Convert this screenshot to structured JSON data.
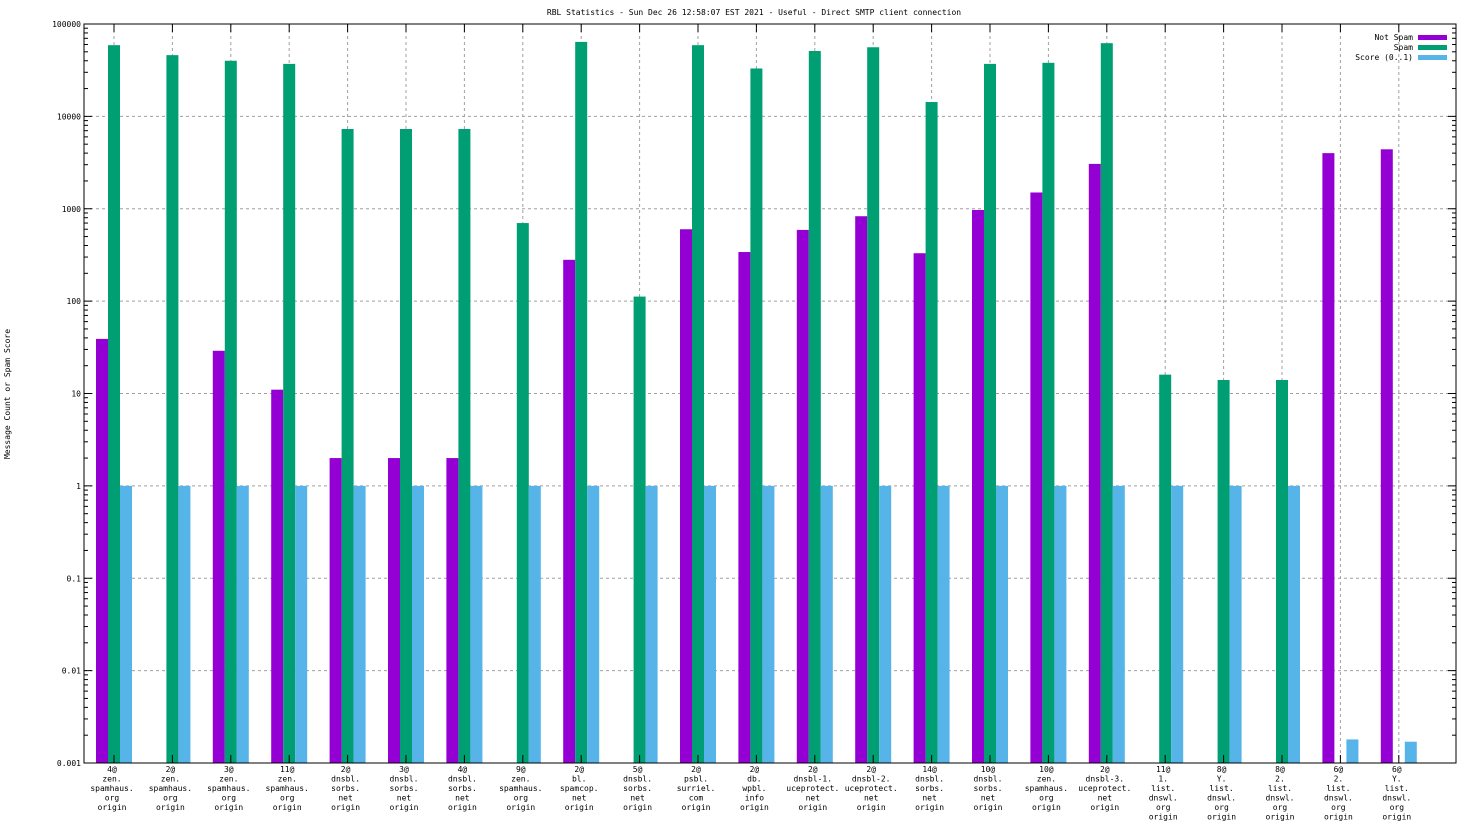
{
  "chart_data": {
    "type": "bar",
    "title": "RBL Statistics - Sun Dec 26 12:58:07 EST 2021 - Useful - Direct SMTP client connection",
    "xlabel": "",
    "ylabel": "Message Count or Spam Score",
    "yscale": "log",
    "ylim": [
      0.001,
      100000
    ],
    "yticks": [
      "0.001",
      "0.01",
      "0.1",
      "1",
      "10",
      "100",
      "1000",
      "10000",
      "100000"
    ],
    "grid": true,
    "legend_position": "top-right",
    "colors": {
      "Not Spam": "#9400d3",
      "Spam": "#009e73",
      "Score (0..1)": "#56b4e9"
    },
    "categories": [
      [
        "4@",
        "zen.",
        "spamhaus.",
        "org",
        "origin"
      ],
      [
        "2@",
        "zen.",
        "spamhaus.",
        "org",
        "origin"
      ],
      [
        "3@",
        "zen.",
        "spamhaus.",
        "org",
        "origin"
      ],
      [
        "11@",
        "zen.",
        "spamhaus.",
        "org",
        "origin"
      ],
      [
        "2@",
        "dnsbl.",
        "sorbs.",
        "net",
        "origin"
      ],
      [
        "3@",
        "dnsbl.",
        "sorbs.",
        "net",
        "origin"
      ],
      [
        "4@",
        "dnsbl.",
        "sorbs.",
        "net",
        "origin"
      ],
      [
        "9@",
        "zen.",
        "spamhaus.",
        "org",
        "origin"
      ],
      [
        "2@",
        "bl.",
        "spamcop.",
        "net",
        "origin"
      ],
      [
        "5@",
        "dnsbl.",
        "sorbs.",
        "net",
        "origin"
      ],
      [
        "2@",
        "psbl.",
        "surriel.",
        "com",
        "origin"
      ],
      [
        "2@",
        "db.",
        "wpbl.",
        "info",
        "origin"
      ],
      [
        "2@",
        "dnsbl-1.",
        "uceprotect.",
        "net",
        "origin"
      ],
      [
        "2@",
        "dnsbl-2.",
        "uceprotect.",
        "net",
        "origin"
      ],
      [
        "14@",
        "dnsbl.",
        "sorbs.",
        "net",
        "origin"
      ],
      [
        "10@",
        "dnsbl.",
        "sorbs.",
        "net",
        "origin"
      ],
      [
        "10@",
        "zen.",
        "spamhaus.",
        "org",
        "origin"
      ],
      [
        "2@",
        "dnsbl-3.",
        "uceprotect.",
        "net",
        "origin"
      ],
      [
        "11@",
        "1.",
        "list.",
        "dnswl.",
        "org",
        "origin"
      ],
      [
        "8@",
        "Y.",
        "list.",
        "dnswl.",
        "org",
        "origin"
      ],
      [
        "8@",
        "2.",
        "list.",
        "dnswl.",
        "org",
        "origin"
      ],
      [
        "6@",
        "2.",
        "list.",
        "dnswl.",
        "org",
        "origin"
      ],
      [
        "6@",
        "Y.",
        "list.",
        "dnswl.",
        "org",
        "origin"
      ]
    ],
    "series": [
      {
        "name": "Not Spam",
        "values": [
          39,
          null,
          29,
          11,
          2,
          2,
          2,
          null,
          280,
          null,
          600,
          340,
          590,
          830,
          330,
          970,
          1500,
          3060,
          null,
          null,
          null,
          4000,
          4400
        ]
      },
      {
        "name": "Spam",
        "values": [
          59000,
          46000,
          40000,
          37000,
          7300,
          7300,
          7300,
          700,
          64000,
          112,
          59000,
          33000,
          51000,
          56000,
          14300,
          37000,
          38000,
          62000,
          16,
          14,
          14,
          null,
          null
        ]
      },
      {
        "name": "Score (0..1)",
        "values": [
          1,
          1,
          1,
          1,
          1,
          1,
          1,
          1,
          1,
          1,
          1,
          1,
          1,
          1,
          1,
          1,
          1,
          1,
          1,
          1,
          1,
          0.0018,
          0.0017
        ]
      }
    ]
  }
}
